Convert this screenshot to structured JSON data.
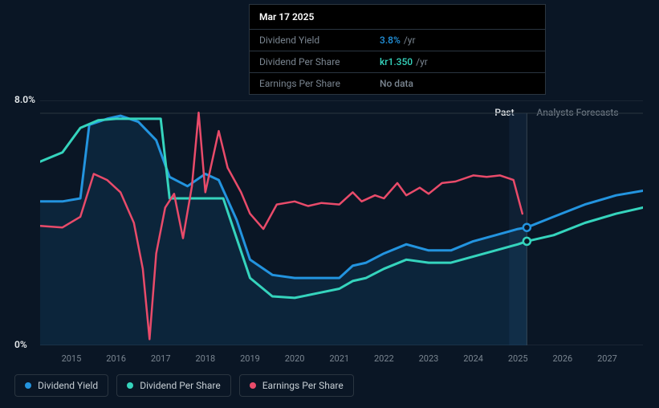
{
  "tooltip": {
    "date": "Mar 17 2025",
    "rows": [
      {
        "label": "Dividend Yield",
        "value": "3.8%",
        "unit": "/yr",
        "color": "#2394df"
      },
      {
        "label": "Dividend Per Share",
        "value": "kr1.350",
        "unit": "/yr",
        "color": "#35d4bd"
      },
      {
        "label": "Earnings Per Share",
        "value": "No data",
        "unit": "",
        "color": "#7a8590"
      }
    ]
  },
  "chart": {
    "background": "#0a1625",
    "grid_color": "#1a2533",
    "vline_color": "#3a4550",
    "ylim": [
      0,
      8
    ],
    "y_ticks": [
      {
        "v": 8,
        "label": "8.0%"
      },
      {
        "v": 0,
        "label": "0%"
      }
    ],
    "xlim": [
      2014.3,
      2027.8
    ],
    "x_ticks": [
      2015,
      2016,
      2017,
      2018,
      2019,
      2020,
      2021,
      2022,
      2023,
      2024,
      2025,
      2026,
      2027
    ],
    "past_split": 2025.2,
    "regions": {
      "past": {
        "label": "Past",
        "color": "#e5e9ec"
      },
      "forecast": {
        "label": "Analysts Forecasts",
        "color": "#6a7580"
      }
    },
    "series": [
      {
        "name": "Dividend Yield",
        "color": "#2394df",
        "width": 3,
        "area_from": 2014.3,
        "area_to": 2025.2,
        "area_opacity": 0.12,
        "marker_at": 2025.2,
        "points": [
          [
            2014.3,
            4.7
          ],
          [
            2014.8,
            4.7
          ],
          [
            2015.2,
            4.8
          ],
          [
            2015.4,
            7.2
          ],
          [
            2015.8,
            7.4
          ],
          [
            2016.1,
            7.5
          ],
          [
            2016.5,
            7.3
          ],
          [
            2016.9,
            6.7
          ],
          [
            2017.2,
            5.5
          ],
          [
            2017.6,
            5.2
          ],
          [
            2018.0,
            5.6
          ],
          [
            2018.3,
            5.4
          ],
          [
            2018.7,
            4.1
          ],
          [
            2019.0,
            2.8
          ],
          [
            2019.5,
            2.3
          ],
          [
            2020.0,
            2.2
          ],
          [
            2020.5,
            2.2
          ],
          [
            2021.0,
            2.2
          ],
          [
            2021.3,
            2.6
          ],
          [
            2021.6,
            2.7
          ],
          [
            2022.0,
            3.0
          ],
          [
            2022.5,
            3.3
          ],
          [
            2023.0,
            3.1
          ],
          [
            2023.5,
            3.1
          ],
          [
            2024.0,
            3.4
          ],
          [
            2024.5,
            3.6
          ],
          [
            2025.0,
            3.8
          ],
          [
            2025.2,
            3.85
          ],
          [
            2025.8,
            4.2
          ],
          [
            2026.5,
            4.6
          ],
          [
            2027.2,
            4.9
          ],
          [
            2027.8,
            5.05
          ]
        ]
      },
      {
        "name": "Dividend Per Share",
        "color": "#35d4bd",
        "width": 3,
        "marker_at": 2025.2,
        "points": [
          [
            2014.3,
            6.0
          ],
          [
            2014.8,
            6.3
          ],
          [
            2015.2,
            7.1
          ],
          [
            2015.6,
            7.35
          ],
          [
            2016.0,
            7.4
          ],
          [
            2016.4,
            7.4
          ],
          [
            2016.8,
            7.4
          ],
          [
            2017.0,
            7.4
          ],
          [
            2017.2,
            4.8
          ],
          [
            2017.6,
            4.8
          ],
          [
            2018.0,
            4.8
          ],
          [
            2018.4,
            4.8
          ],
          [
            2018.7,
            3.5
          ],
          [
            2019.0,
            2.2
          ],
          [
            2019.5,
            1.6
          ],
          [
            2020.0,
            1.55
          ],
          [
            2020.5,
            1.7
          ],
          [
            2021.0,
            1.85
          ],
          [
            2021.3,
            2.1
          ],
          [
            2021.6,
            2.2
          ],
          [
            2022.0,
            2.5
          ],
          [
            2022.5,
            2.8
          ],
          [
            2023.0,
            2.7
          ],
          [
            2023.5,
            2.7
          ],
          [
            2024.0,
            2.9
          ],
          [
            2024.5,
            3.1
          ],
          [
            2025.0,
            3.3
          ],
          [
            2025.2,
            3.4
          ],
          [
            2025.8,
            3.6
          ],
          [
            2026.5,
            4.0
          ],
          [
            2027.2,
            4.3
          ],
          [
            2027.8,
            4.5
          ]
        ]
      },
      {
        "name": "Earnings Per Share",
        "color": "#e94b6a",
        "width": 2.5,
        "points": [
          [
            2014.3,
            3.9
          ],
          [
            2014.8,
            3.85
          ],
          [
            2015.2,
            4.2
          ],
          [
            2015.5,
            5.6
          ],
          [
            2015.8,
            5.4
          ],
          [
            2016.1,
            5.0
          ],
          [
            2016.4,
            4.0
          ],
          [
            2016.6,
            2.5
          ],
          [
            2016.75,
            0.2
          ],
          [
            2016.9,
            3.0
          ],
          [
            2017.1,
            4.5
          ],
          [
            2017.3,
            4.95
          ],
          [
            2017.5,
            3.5
          ],
          [
            2017.7,
            5.2
          ],
          [
            2017.85,
            7.6
          ],
          [
            2018.0,
            5.0
          ],
          [
            2018.3,
            7.0
          ],
          [
            2018.5,
            5.8
          ],
          [
            2018.8,
            5.0
          ],
          [
            2019.0,
            4.3
          ],
          [
            2019.3,
            3.8
          ],
          [
            2019.6,
            4.6
          ],
          [
            2020.0,
            4.7
          ],
          [
            2020.3,
            4.55
          ],
          [
            2020.6,
            4.65
          ],
          [
            2021.0,
            4.6
          ],
          [
            2021.3,
            5.0
          ],
          [
            2021.5,
            4.7
          ],
          [
            2021.8,
            4.9
          ],
          [
            2022.0,
            4.8
          ],
          [
            2022.3,
            5.3
          ],
          [
            2022.5,
            4.9
          ],
          [
            2022.8,
            5.15
          ],
          [
            2023.0,
            4.95
          ],
          [
            2023.3,
            5.3
          ],
          [
            2023.6,
            5.35
          ],
          [
            2024.0,
            5.55
          ],
          [
            2024.3,
            5.5
          ],
          [
            2024.6,
            5.55
          ],
          [
            2024.9,
            5.4
          ],
          [
            2025.1,
            4.3
          ]
        ]
      }
    ],
    "legend": [
      {
        "label": "Dividend Yield",
        "color": "#2394df"
      },
      {
        "label": "Dividend Per Share",
        "color": "#35d4bd"
      },
      {
        "label": "Earnings Per Share",
        "color": "#e94b6a"
      }
    ]
  }
}
